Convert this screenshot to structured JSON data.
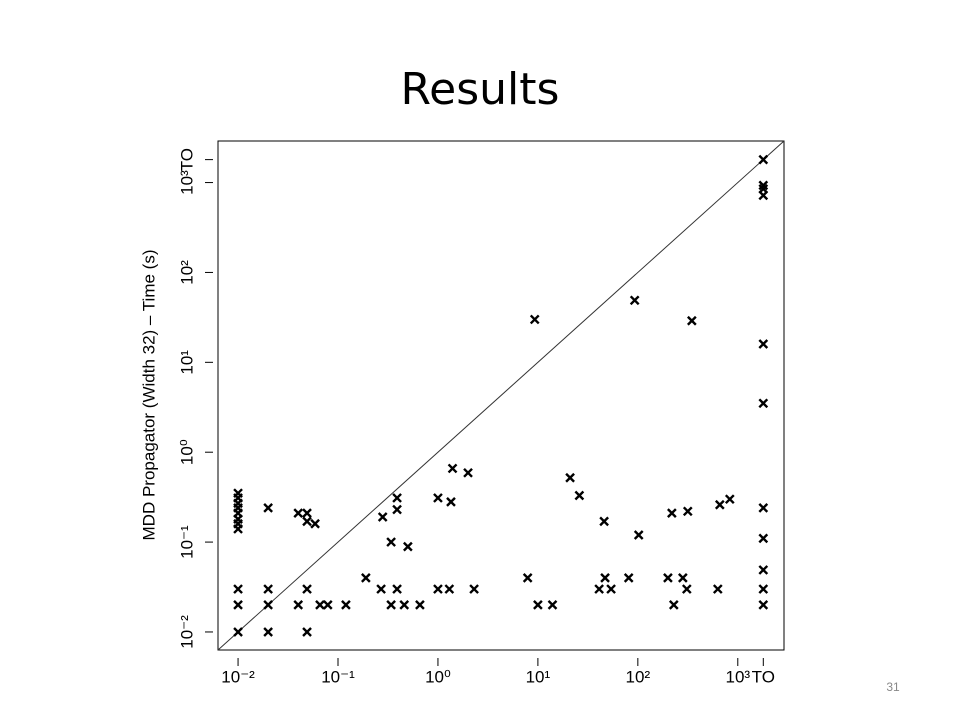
{
  "chart_data": {
    "type": "scatter",
    "title": "Results",
    "slide_number": "31",
    "ylabel": "MDD Propagator (Width 32) – Time (s)",
    "log_scale": true,
    "xlim": [
      0.0063,
      2900
    ],
    "ylim": [
      0.0063,
      2900
    ],
    "xticks": [
      {
        "value": 0.01,
        "label": "10⁻²"
      },
      {
        "value": 0.1,
        "label": "10⁻¹"
      },
      {
        "value": 1,
        "label": "10⁰"
      },
      {
        "value": 10,
        "label": "10¹"
      },
      {
        "value": 100,
        "label": "10²"
      },
      {
        "value": 1000,
        "label": "10³"
      },
      {
        "value": 1800,
        "label": "TO"
      }
    ],
    "yticks": [
      {
        "value": 0.01,
        "label": "10⁻²"
      },
      {
        "value": 0.1,
        "label": "10⁻¹"
      },
      {
        "value": 1,
        "label": "10⁰"
      },
      {
        "value": 10,
        "label": "10¹"
      },
      {
        "value": 100,
        "label": "10²"
      },
      {
        "value": 1000,
        "label": "10³"
      },
      {
        "value": 1800,
        "label": "TO"
      }
    ],
    "diagonal": true,
    "series": [
      {
        "color": "#000000",
        "marker": "x",
        "x": [
          0.01,
          0.01,
          0.01,
          0.01,
          0.01,
          0.01,
          0.01,
          0.01,
          0.01,
          0.01,
          0.01,
          0.02,
          0.02,
          0.02,
          0.02,
          0.04,
          0.04,
          0.049,
          0.049,
          0.059,
          0.049,
          0.049,
          0.066,
          0.079,
          0.12,
          0.19,
          0.28,
          0.27,
          0.34,
          0.34,
          0.39,
          0.39,
          0.39,
          0.46,
          0.5,
          0.66,
          1,
          1,
          1.3,
          1.4,
          1.35,
          2,
          2.3,
          7.9,
          9.3,
          10,
          14,
          21,
          26,
          46,
          41,
          47,
          54,
          81,
          93,
          102,
          200,
          219,
          229,
          282,
          316,
          309,
          347,
          631,
          661,
          832,
          1800,
          1800,
          1800,
          1800,
          1800,
          1800,
          1800,
          1800,
          1800,
          1800,
          1800
        ],
        "y": [
          0.01,
          0.02,
          0.03,
          0.14,
          0.16,
          0.18,
          0.21,
          0.24,
          0.27,
          0.31,
          0.35,
          0.01,
          0.02,
          0.03,
          0.24,
          0.02,
          0.21,
          0.21,
          0.17,
          0.16,
          0.03,
          0.01,
          0.02,
          0.02,
          0.02,
          0.04,
          0.19,
          0.03,
          0.1,
          0.02,
          0.31,
          0.23,
          0.03,
          0.02,
          0.089,
          0.02,
          0.31,
          0.03,
          0.03,
          0.66,
          0.28,
          0.59,
          0.03,
          0.04,
          30,
          0.02,
          0.02,
          0.52,
          0.33,
          0.17,
          0.03,
          0.04,
          0.03,
          0.04,
          49,
          0.12,
          0.04,
          0.21,
          0.02,
          0.04,
          0.22,
          0.03,
          29,
          0.03,
          0.26,
          0.3,
          1800,
          930,
          850,
          720,
          16,
          3.5,
          0.24,
          0.11,
          0.049,
          0.03,
          0.02
        ]
      }
    ]
  }
}
